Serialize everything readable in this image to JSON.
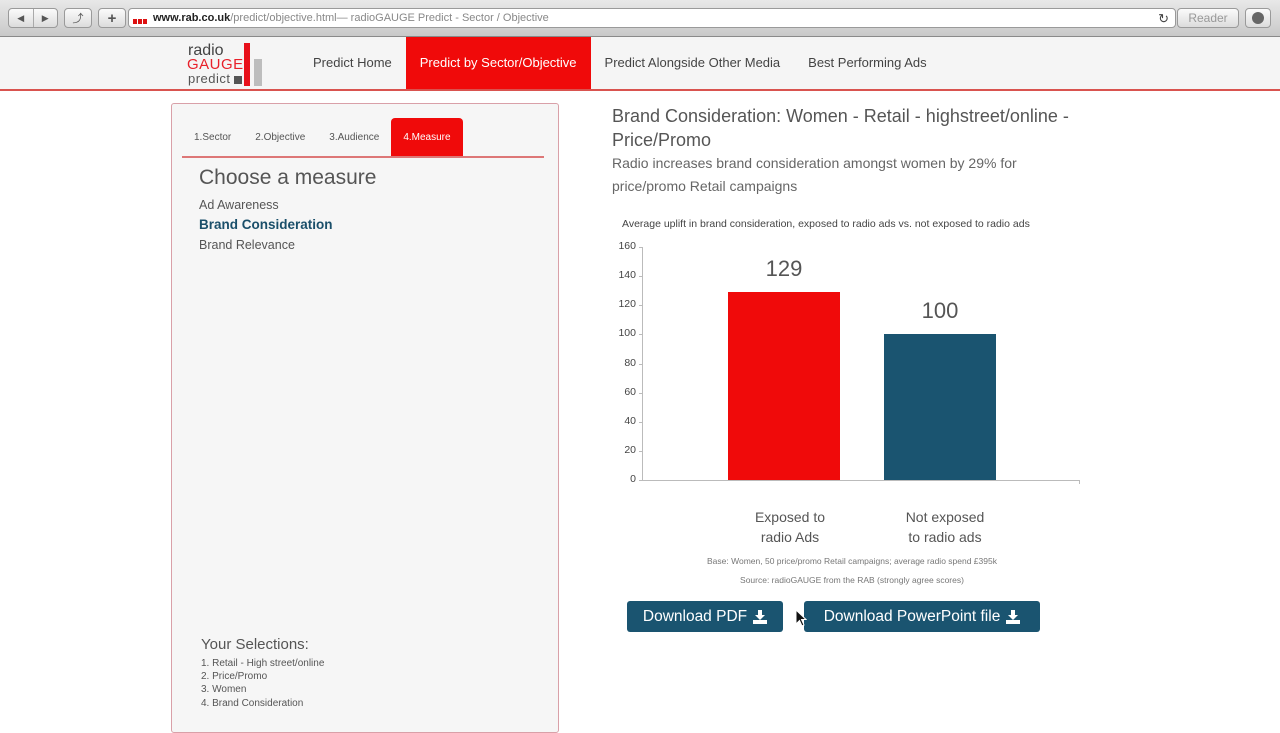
{
  "browser": {
    "url_domain": "www.rab.co.uk",
    "url_path": "/predict/objective.html",
    "page_title": " — radioGAUGE Predict - Sector / Objective",
    "reader_label": "Reader",
    "back_icon": "◀",
    "forward_icon": "▶",
    "share_icon": "⤴",
    "newtab_icon": "+",
    "reload_icon": "↻"
  },
  "logo": {
    "line1": "radio",
    "line2": "GAUGE",
    "line3": "predict"
  },
  "nav": {
    "items": [
      {
        "label": "Predict Home",
        "active": false
      },
      {
        "label": "Predict by Sector/Objective",
        "active": true
      },
      {
        "label": "Predict Alongside Other Media",
        "active": false
      },
      {
        "label": "Best Performing Ads",
        "active": false
      }
    ]
  },
  "left_panel": {
    "steps": [
      {
        "label": "1.Sector"
      },
      {
        "label": "2.Objective"
      },
      {
        "label": "3.Audience"
      },
      {
        "label": "4.Measure",
        "active": true
      }
    ],
    "choose_title": "Choose a measure",
    "measures": [
      {
        "label": "Ad Awareness"
      },
      {
        "label": "Brand Consideration",
        "selected": true
      },
      {
        "label": "Brand Relevance"
      }
    ],
    "selections_title": "Your Selections:",
    "selections": [
      "1. Retail - High street/online",
      "2. Price/Promo",
      "3. Women",
      "4. Brand Consideration"
    ]
  },
  "main": {
    "title": "Brand Consideration: Women - Retail - highstreet/online - Price/Promo",
    "subtitle": "Radio increases brand consideration amongst women by 29% for price/promo Retail campaigns",
    "footnote_base": "Base: Women, 50 price/promo Retail campaigns; average radio spend £395k",
    "footnote_source": "Source: radioGAUGE from the RAB (strongly agree scores)",
    "buttons": {
      "download_pdf": "Download PDF",
      "download_ppt": "Download PowerPoint file"
    }
  },
  "chart_data": {
    "type": "bar",
    "title": "Average uplift in brand consideration, exposed to radio ads vs. not exposed to radio ads",
    "categories": [
      "Exposed to radio Ads",
      "Not exposed to radio ads"
    ],
    "category_lines": [
      [
        "Exposed to",
        "radio Ads"
      ],
      [
        "Not exposed",
        "to radio ads"
      ]
    ],
    "values": [
      129,
      100
    ],
    "colors": [
      "#f00a0a",
      "#1a5470"
    ],
    "xlabel": "",
    "ylabel": "",
    "ylim": [
      0,
      160
    ],
    "yticks": [
      0,
      20,
      40,
      60,
      80,
      100,
      120,
      140,
      160
    ],
    "grid": false,
    "legend": "none",
    "data_labels": true
  }
}
